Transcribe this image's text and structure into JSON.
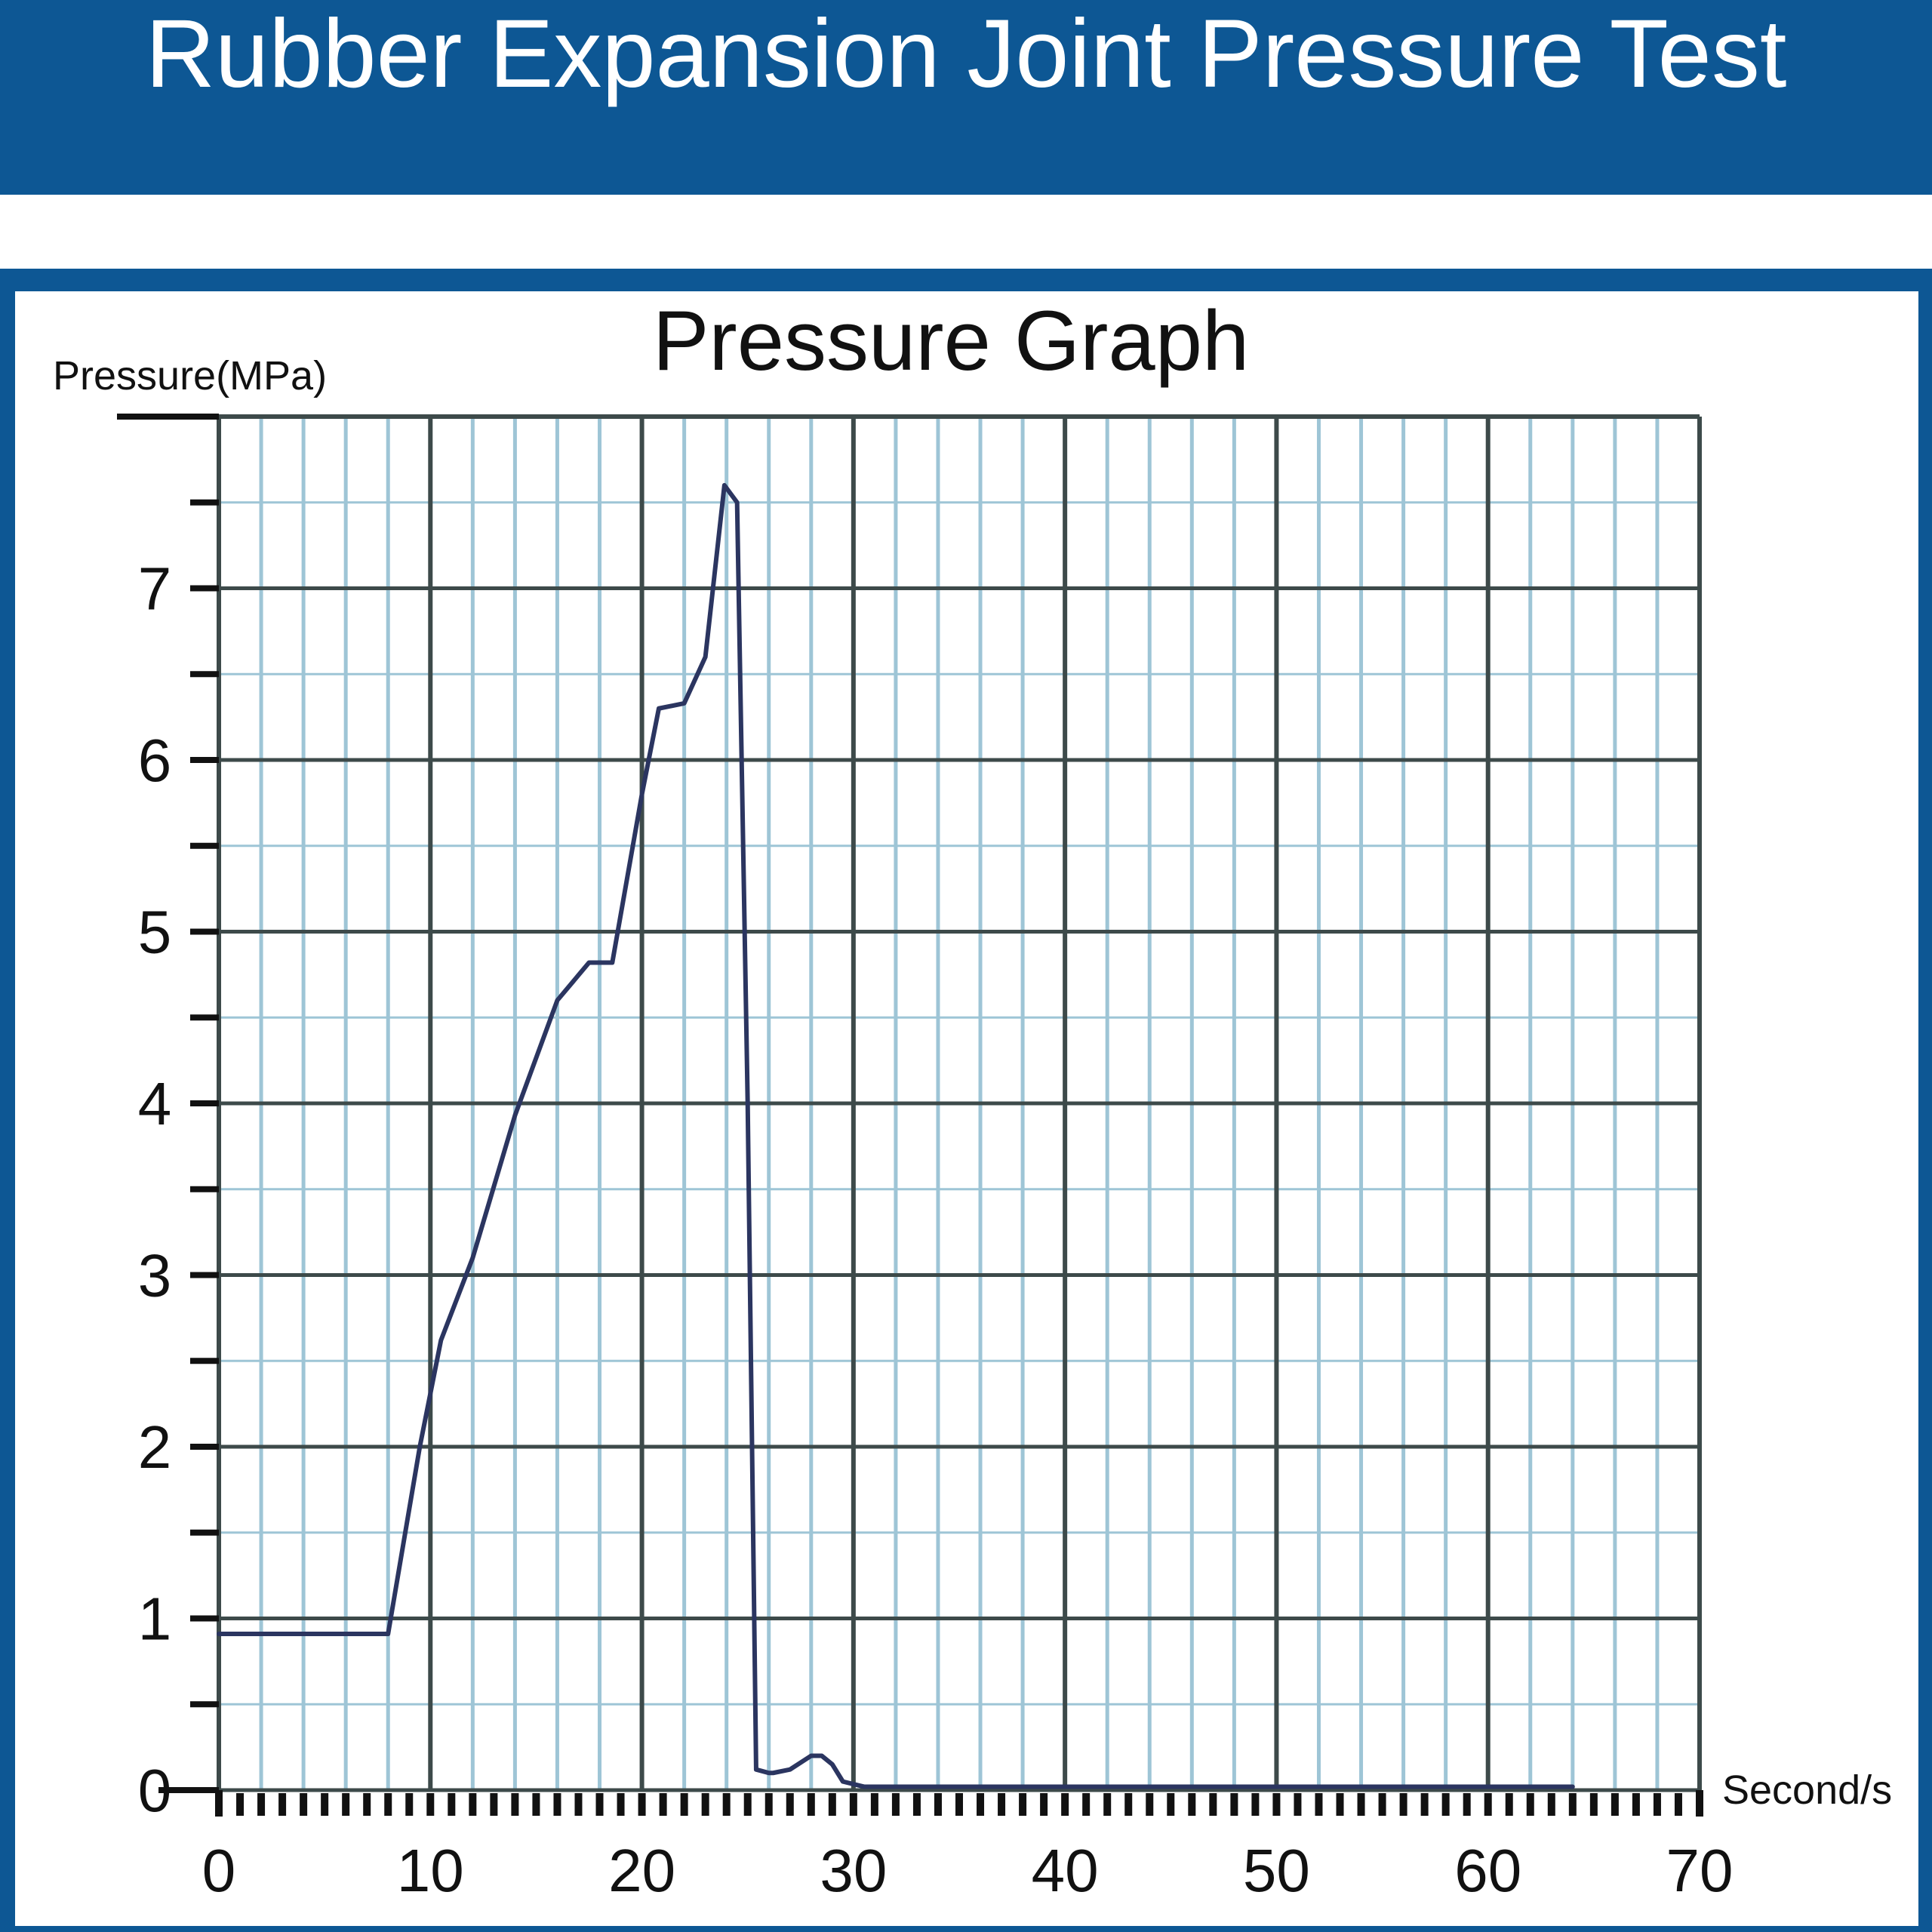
{
  "header": {
    "title": "Rubber Expansion Joint Pressure Test"
  },
  "colors": {
    "banner": "#0d5794",
    "grid_major": "#3d4a4a",
    "grid_minor": "#9ec5d6",
    "line": "#2b3560"
  },
  "chart_data": {
    "type": "line",
    "title": "Pressure Graph",
    "ylabel": "Pressure(MPa)",
    "xlabel": "Second/s",
    "xlim": [
      0,
      70
    ],
    "ylim": [
      0,
      8
    ],
    "x_ticks": [
      0,
      10,
      20,
      30,
      40,
      50,
      60,
      70
    ],
    "y_ticks": [
      0,
      1,
      2,
      3,
      4,
      5,
      6,
      7
    ],
    "grid": true,
    "series": [
      {
        "x": [
          0,
          1.7,
          8.0,
          9.5,
          10.5,
          12,
          14,
          16,
          17.5,
          18.6,
          20,
          20.8,
          22,
          23,
          23.9,
          24.5,
          25,
          25.4,
          26.0,
          26.2,
          27,
          28,
          28.5,
          29.0,
          29.5,
          30.5,
          64
        ],
        "y": [
          0.91,
          0.91,
          0.91,
          2.0,
          2.62,
          3.1,
          3.93,
          4.6,
          4.82,
          4.82,
          5.8,
          6.3,
          6.33,
          6.6,
          7.6,
          7.5,
          4.0,
          0.12,
          0.1,
          0.1,
          0.12,
          0.2,
          0.2,
          0.15,
          0.05,
          0.02,
          0.02
        ]
      }
    ]
  }
}
